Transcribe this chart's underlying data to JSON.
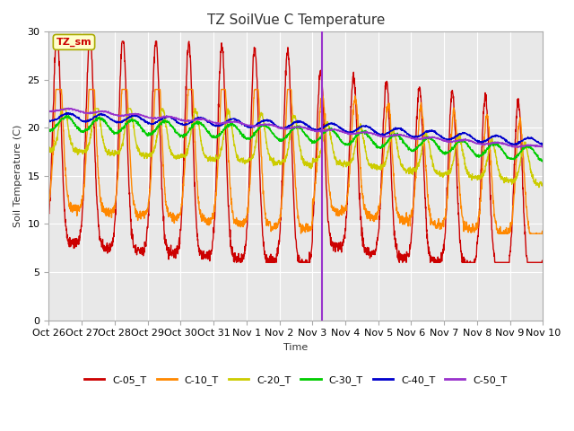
{
  "title": "TZ SoilVue C Temperature",
  "xlabel": "Time",
  "ylabel": "Soil Temperature (C)",
  "ylim": [
    0,
    30
  ],
  "background_color": "#ffffff",
  "plot_bg_color": "#e8e8e8",
  "annotation_label": "TZ_sm",
  "annotation_box_color": "#ffffcc",
  "annotation_border_color": "#aaaa00",
  "annotation_text_color": "#cc0000",
  "xtick_labels": [
    "Oct 26",
    "Oct 27",
    "Oct 28",
    "Oct 29",
    "Oct 30",
    "Oct 31",
    "Nov 1",
    "Nov 2",
    "Nov 3",
    "Nov 4",
    "Nov 5",
    "Nov 6",
    "Nov 7",
    "Nov 8",
    "Nov 9",
    "Nov 10"
  ],
  "vline_x": 8.3,
  "vline_color": "#9933cc",
  "series_colors": [
    "#cc0000",
    "#ff8800",
    "#cccc00",
    "#00cc00",
    "#0000cc",
    "#9933cc"
  ],
  "legend_labels": [
    "C-05_T",
    "C-10_T",
    "C-20_T",
    "C-30_T",
    "C-40_T",
    "C-50_T"
  ],
  "figsize": [
    6.4,
    4.8
  ],
  "dpi": 100
}
